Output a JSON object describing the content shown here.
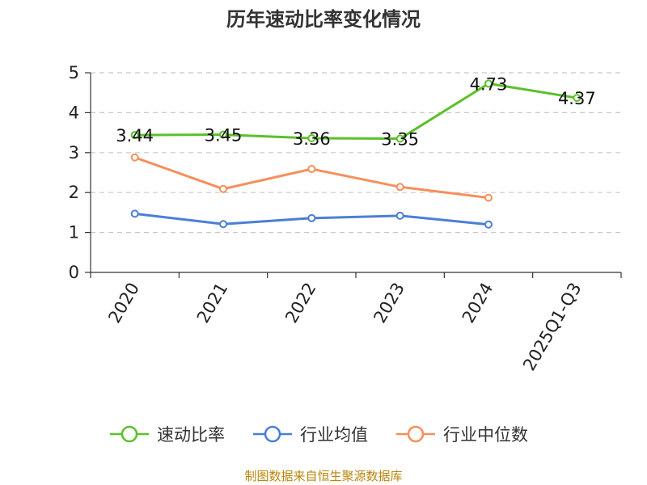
{
  "chart_data": {
    "type": "line",
    "title": "历年速动比率变化情况",
    "categories": [
      "2020",
      "2021",
      "2022",
      "2023",
      "2024",
      "2025Q1-Q3"
    ],
    "ylim": [
      0,
      5
    ],
    "yticks": [
      "0",
      "1",
      "2",
      "3",
      "4",
      "5"
    ],
    "grid": true,
    "legend_position": "bottom",
    "xlabel": "",
    "ylabel": "",
    "series": [
      {
        "name": "速动比率",
        "color": "#5cc02a",
        "values": [
          3.44,
          3.45,
          3.36,
          3.35,
          4.73,
          4.37
        ],
        "labels": [
          "3.44",
          "3.45",
          "3.36",
          "3.35",
          "4.73",
          "4.37"
        ]
      },
      {
        "name": "行业均值",
        "color": "#4a7fd6",
        "values": [
          1.47,
          1.21,
          1.36,
          1.42,
          1.2,
          null
        ]
      },
      {
        "name": "行业中位数",
        "color": "#f5905a",
        "values": [
          2.88,
          2.09,
          2.59,
          2.14,
          1.87,
          null
        ]
      }
    ]
  },
  "source_text": "制图数据来自恒生聚源数据库"
}
